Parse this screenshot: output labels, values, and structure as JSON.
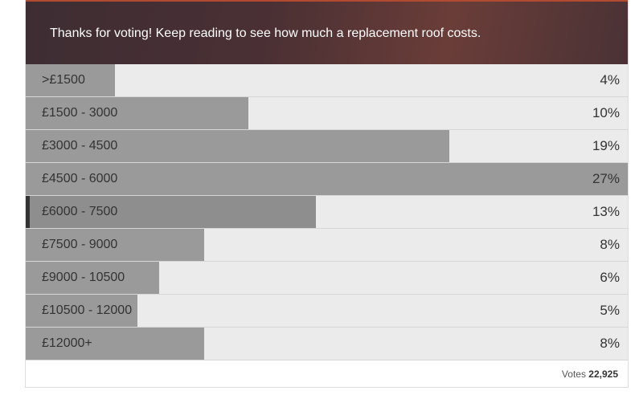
{
  "chart_data": {
    "type": "bar",
    "orientation": "horizontal",
    "title": "Thanks for voting! Keep reading to see how much a replacement roof costs.",
    "categories": [
      ">£1500",
      "£1500 - 3000",
      "£3000 - 4500",
      "£4500 - 6000",
      "£6000 - 7500",
      "£7500 - 9000",
      "£9000 - 10500",
      "£10500 - 12000",
      "£12000+"
    ],
    "values": [
      4,
      10,
      19,
      27,
      13,
      8,
      6,
      5,
      8
    ],
    "value_labels": [
      "4%",
      "10%",
      "19%",
      "27%",
      "13%",
      "8%",
      "6%",
      "5%",
      "8%"
    ],
    "color": "#9a9a9a",
    "selected": 4,
    "selected_color": "#8e8e8e",
    "footer": {
      "label": "Votes",
      "count": "22,925"
    }
  }
}
